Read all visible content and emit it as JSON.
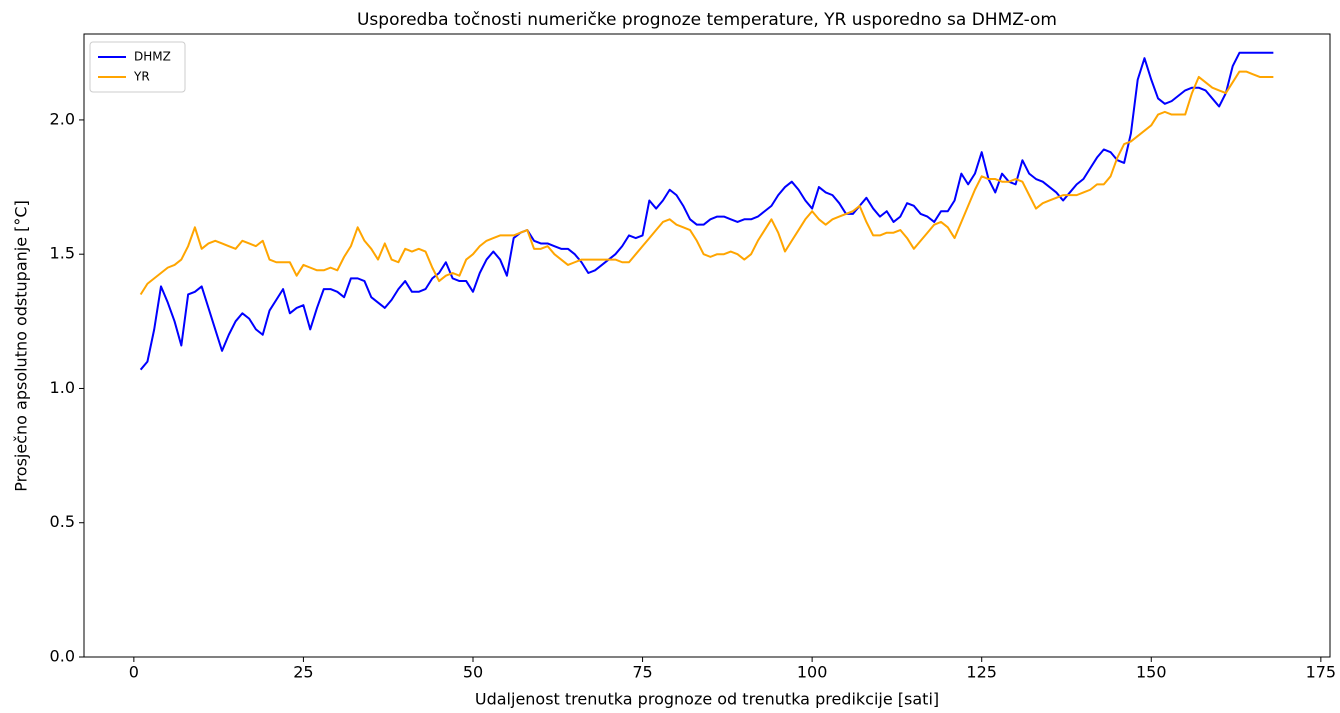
{
  "chart_data": {
    "type": "line",
    "title": "Usporedba točnosti numeričke prognoze temperature, YR usporedno sa DHMZ-om",
    "xlabel": "Udaljenost trenutka prognoze od trenutka predikcije [sati]",
    "ylabel": "Prosječno apsolutno odstupanje [°C]",
    "x": [
      1,
      2,
      3,
      4,
      5,
      6,
      7,
      8,
      9,
      10,
      11,
      12,
      13,
      14,
      15,
      16,
      17,
      18,
      19,
      20,
      21,
      22,
      23,
      24,
      25,
      26,
      27,
      28,
      29,
      30,
      31,
      32,
      33,
      34,
      35,
      36,
      37,
      38,
      39,
      40,
      41,
      42,
      43,
      44,
      45,
      46,
      47,
      48,
      49,
      50,
      51,
      52,
      53,
      54,
      55,
      56,
      57,
      58,
      59,
      60,
      61,
      62,
      63,
      64,
      65,
      66,
      67,
      68,
      69,
      70,
      71,
      72,
      73,
      74,
      75,
      76,
      77,
      78,
      79,
      80,
      81,
      82,
      83,
      84,
      85,
      86,
      87,
      88,
      89,
      90,
      91,
      92,
      93,
      94,
      95,
      96,
      97,
      98,
      99,
      100,
      101,
      102,
      103,
      104,
      105,
      106,
      107,
      108,
      109,
      110,
      111,
      112,
      113,
      114,
      115,
      116,
      117,
      118,
      119,
      120,
      121,
      122,
      123,
      124,
      125,
      126,
      127,
      128,
      129,
      130,
      131,
      132,
      133,
      134,
      135,
      136,
      137,
      138,
      139,
      140,
      141,
      142,
      143,
      144,
      145,
      146,
      147,
      148,
      149,
      150,
      151,
      152,
      153,
      154,
      155,
      156,
      157,
      158,
      159,
      160,
      161,
      162,
      163,
      164,
      165,
      166,
      167,
      168
    ],
    "series": [
      {
        "name": "DHMZ",
        "color": "#0000ff",
        "values": [
          1.07,
          1.1,
          1.22,
          1.38,
          1.32,
          1.25,
          1.16,
          1.35,
          1.36,
          1.38,
          1.3,
          1.22,
          1.14,
          1.2,
          1.25,
          1.28,
          1.26,
          1.22,
          1.2,
          1.29,
          1.33,
          1.37,
          1.28,
          1.3,
          1.31,
          1.22,
          1.3,
          1.37,
          1.37,
          1.36,
          1.34,
          1.41,
          1.41,
          1.4,
          1.34,
          1.32,
          1.3,
          1.33,
          1.37,
          1.4,
          1.36,
          1.36,
          1.37,
          1.41,
          1.43,
          1.47,
          1.41,
          1.4,
          1.4,
          1.36,
          1.43,
          1.48,
          1.51,
          1.48,
          1.42,
          1.56,
          1.58,
          1.59,
          1.55,
          1.54,
          1.54,
          1.53,
          1.52,
          1.52,
          1.5,
          1.47,
          1.43,
          1.44,
          1.46,
          1.48,
          1.5,
          1.53,
          1.57,
          1.56,
          1.57,
          1.7,
          1.67,
          1.7,
          1.74,
          1.72,
          1.68,
          1.63,
          1.61,
          1.61,
          1.63,
          1.64,
          1.64,
          1.63,
          1.62,
          1.63,
          1.63,
          1.64,
          1.66,
          1.68,
          1.72,
          1.75,
          1.77,
          1.74,
          1.7,
          1.67,
          1.75,
          1.73,
          1.72,
          1.69,
          1.65,
          1.65,
          1.68,
          1.71,
          1.67,
          1.64,
          1.66,
          1.62,
          1.64,
          1.69,
          1.68,
          1.65,
          1.64,
          1.62,
          1.66,
          1.66,
          1.7,
          1.8,
          1.76,
          1.8,
          1.88,
          1.78,
          1.73,
          1.8,
          1.77,
          1.76,
          1.85,
          1.8,
          1.78,
          1.77,
          1.75,
          1.73,
          1.7,
          1.73,
          1.76,
          1.78,
          1.82,
          1.86,
          1.89,
          1.88,
          1.85,
          1.84,
          1.95,
          2.15,
          2.23,
          2.15,
          2.08,
          2.06,
          2.07,
          2.09,
          2.11,
          2.12,
          2.12,
          2.11,
          2.08,
          2.05,
          2.1,
          2.2,
          2.25,
          2.25,
          2.25,
          2.25,
          2.25,
          2.25
        ]
      },
      {
        "name": "YR",
        "color": "#ffa500",
        "values": [
          1.35,
          1.39,
          1.41,
          1.43,
          1.45,
          1.46,
          1.48,
          1.53,
          1.6,
          1.52,
          1.54,
          1.55,
          1.54,
          1.53,
          1.52,
          1.55,
          1.54,
          1.53,
          1.55,
          1.48,
          1.47,
          1.47,
          1.47,
          1.42,
          1.46,
          1.45,
          1.44,
          1.44,
          1.45,
          1.44,
          1.49,
          1.53,
          1.6,
          1.55,
          1.52,
          1.48,
          1.54,
          1.48,
          1.47,
          1.52,
          1.51,
          1.52,
          1.51,
          1.45,
          1.4,
          1.42,
          1.43,
          1.42,
          1.48,
          1.5,
          1.53,
          1.55,
          1.56,
          1.57,
          1.57,
          1.57,
          1.58,
          1.59,
          1.52,
          1.52,
          1.53,
          1.5,
          1.48,
          1.46,
          1.47,
          1.48,
          1.48,
          1.48,
          1.48,
          1.48,
          1.48,
          1.47,
          1.47,
          1.5,
          1.53,
          1.56,
          1.59,
          1.62,
          1.63,
          1.61,
          1.6,
          1.59,
          1.55,
          1.5,
          1.49,
          1.5,
          1.5,
          1.51,
          1.5,
          1.48,
          1.5,
          1.55,
          1.59,
          1.63,
          1.58,
          1.51,
          1.55,
          1.59,
          1.63,
          1.66,
          1.63,
          1.61,
          1.63,
          1.64,
          1.65,
          1.66,
          1.68,
          1.62,
          1.57,
          1.57,
          1.58,
          1.58,
          1.59,
          1.56,
          1.52,
          1.55,
          1.58,
          1.61,
          1.62,
          1.6,
          1.56,
          1.62,
          1.68,
          1.74,
          1.79,
          1.78,
          1.78,
          1.77,
          1.77,
          1.78,
          1.77,
          1.72,
          1.67,
          1.69,
          1.7,
          1.71,
          1.72,
          1.72,
          1.72,
          1.73,
          1.74,
          1.76,
          1.76,
          1.79,
          1.86,
          1.91,
          1.92,
          1.94,
          1.96,
          1.98,
          2.02,
          2.03,
          2.02,
          2.02,
          2.02,
          2.1,
          2.16,
          2.14,
          2.12,
          2.11,
          2.1,
          2.14,
          2.18,
          2.18,
          2.17,
          2.16,
          2.16,
          2.16
        ]
      }
    ],
    "xlim": [
      -7.35,
      176.35
    ],
    "ylim": [
      0,
      2.32
    ],
    "xticks": [
      0,
      25,
      50,
      75,
      100,
      125,
      150,
      175
    ],
    "yticks": [
      {
        "value": 0,
        "label": "0.0"
      },
      0.5,
      {
        "value": 1,
        "label": "1.0"
      },
      1.5,
      {
        "value": 2,
        "label": "2.0"
      }
    ],
    "legend": "upper left"
  }
}
